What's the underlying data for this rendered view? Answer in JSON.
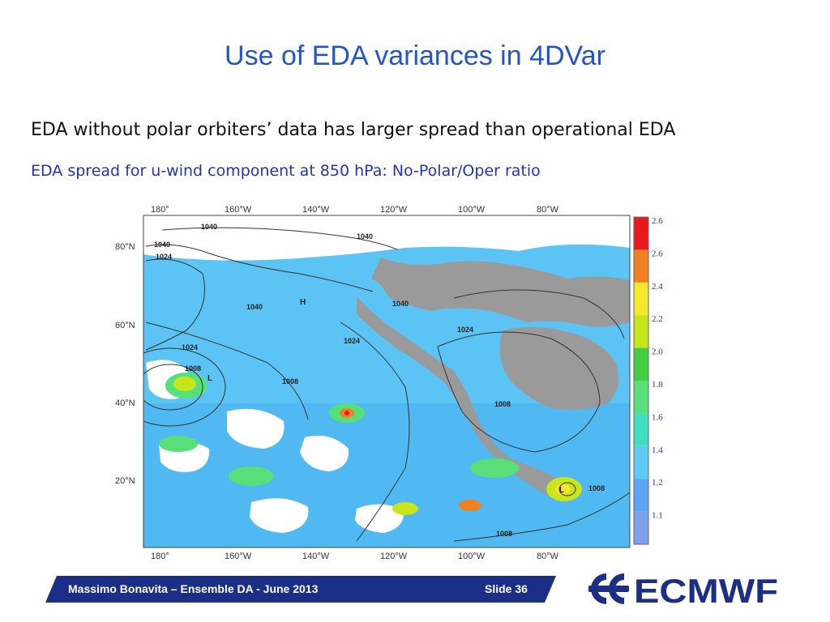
{
  "slide": {
    "title": "Use of EDA variances in 4DVar",
    "line1": "EDA without polar orbiters’ data has larger spread than operational EDA",
    "line2": "EDA spread for u-wind component at 850 hPa: No-Polar/Oper ratio"
  },
  "map": {
    "lon_labels": [
      "180°",
      "160°W",
      "140°W",
      "120°W",
      "100°W",
      "80°W"
    ],
    "lat_labels": [
      "80°N",
      "60°N",
      "40°N",
      "20°N"
    ],
    "colorbar_labels": [
      "2.6",
      "2.6",
      "2.4",
      "2.2",
      "2.0",
      "1.8",
      "1.6",
      "1.4",
      "1.2",
      "1.1"
    ],
    "colorbar_colors": [
      "#e8191c",
      "#f08020",
      "#f4e82c",
      "#c6e61a",
      "#3fcf3f",
      "#57e07a",
      "#3ee0c0",
      "#5ecbf2",
      "#5aa6f4",
      "#7fa0ec"
    ],
    "contour_labels": [
      "1040",
      "1040",
      "1040",
      "1024",
      "1040",
      "1040",
      "1024",
      "1024",
      "1024",
      "1008",
      "1008",
      "1008",
      "1008",
      "1008"
    ],
    "pressure_markers": [
      "H",
      "L",
      "L"
    ]
  },
  "footer": {
    "text": "Massimo Bonavita –  Ensemble DA - June 2013",
    "slide": "Slide 36"
  },
  "logo": {
    "text": "ECMWF"
  },
  "colors": {
    "title": "#2255cc",
    "subtitle": "#2233bb",
    "footer_bar": "#1b2f86",
    "logo": "#1b2f86"
  }
}
